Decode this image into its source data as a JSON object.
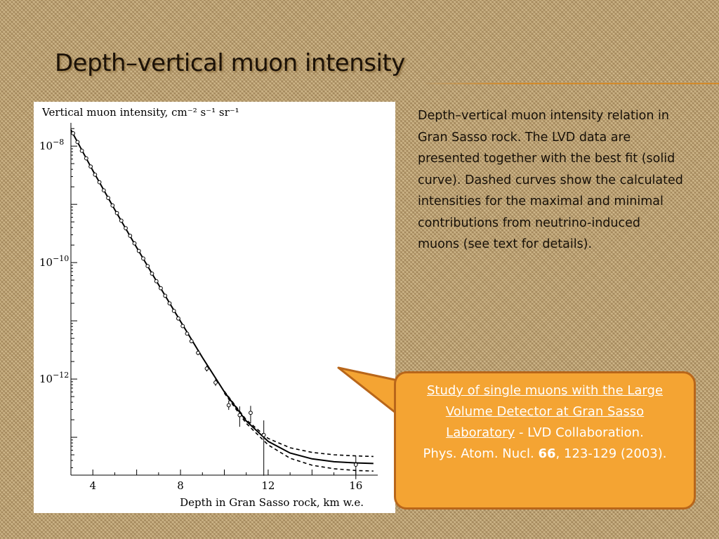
{
  "slide": {
    "title": "Depth–vertical muon intensity",
    "caption": "Depth–vertical muon intensity relation in Gran Sasso rock. The LVD data are presented together with the best fit (solid curve). Dashed curves show the calculated intensities for the maximal and minimal contributions from neutrino-induced muons (see text for details).",
    "reference": {
      "title": "Study of single muons with the Large Volume Detector at Gran Sasso Laboratory",
      "authors": " - LVD Collaboration.",
      "journal": "Phys. Atom. Nucl. ",
      "volume": "66",
      "pages_year": ", 123-129 (2003)."
    },
    "colors": {
      "accent": "#f4a433",
      "accent_border": "#b8661a",
      "title_rule": "#d38a2a"
    }
  },
  "chart_data": {
    "type": "scatter",
    "ylabel": "Vertical muon intensity, cm⁻² s⁻¹ sr⁻¹",
    "xlabel": "Depth in Gran Sasso rock, km w.e.",
    "x_ticks": [
      4,
      8,
      12,
      16
    ],
    "y_tick_labels": [
      {
        "exp": -8,
        "label": "10",
        "sup": "−8"
      },
      {
        "exp": -10,
        "label": "10",
        "sup": "−10"
      },
      {
        "exp": -12,
        "label": "10",
        "sup": "−12"
      }
    ],
    "xlim": [
      3,
      17
    ],
    "ylim_log10": [
      -13.65,
      -7.6
    ],
    "y_scale": "log",
    "series": [
      {
        "style": "points-with-errors",
        "x": [
          3.1,
          3.3,
          3.5,
          3.7,
          3.9,
          4.1,
          4.3,
          4.5,
          4.7,
          4.9,
          5.1,
          5.3,
          5.5,
          5.7,
          5.9,
          6.1,
          6.3,
          6.5,
          6.7,
          6.9,
          7.1,
          7.3,
          7.5,
          7.7,
          7.9,
          8.1,
          8.3,
          8.5,
          8.8,
          9.2,
          9.6,
          10.2,
          10.7,
          11.2,
          11.8,
          16.0
        ],
        "y_log10": [
          -7.78,
          -7.93,
          -8.08,
          -8.21,
          -8.35,
          -8.49,
          -8.62,
          -8.76,
          -8.89,
          -9.02,
          -9.15,
          -9.28,
          -9.41,
          -9.54,
          -9.67,
          -9.8,
          -9.93,
          -10.06,
          -10.19,
          -10.32,
          -10.44,
          -10.57,
          -10.7,
          -10.83,
          -10.96,
          -11.09,
          -11.22,
          -11.35,
          -11.55,
          -11.82,
          -12.06,
          -12.45,
          -12.62,
          -12.58,
          -12.96,
          -13.47
        ],
        "err_lo": [
          0.02,
          0.02,
          0.02,
          0.02,
          0.02,
          0.02,
          0.02,
          0.02,
          0.02,
          0.02,
          0.02,
          0.02,
          0.02,
          0.02,
          0.02,
          0.02,
          0.02,
          0.02,
          0.02,
          0.02,
          0.02,
          0.02,
          0.02,
          0.02,
          0.02,
          0.02,
          0.03,
          0.03,
          0.04,
          0.05,
          0.06,
          0.08,
          0.2,
          0.18,
          0.7,
          0.25
        ],
        "err_hi": [
          0.02,
          0.02,
          0.02,
          0.02,
          0.02,
          0.02,
          0.02,
          0.02,
          0.02,
          0.02,
          0.02,
          0.02,
          0.02,
          0.02,
          0.02,
          0.02,
          0.02,
          0.02,
          0.02,
          0.02,
          0.02,
          0.02,
          0.02,
          0.02,
          0.02,
          0.02,
          0.03,
          0.03,
          0.04,
          0.05,
          0.06,
          0.08,
          0.15,
          0.12,
          0.25,
          0.15
        ]
      },
      {
        "style": "solid",
        "x": [
          3.0,
          4.0,
          5.0,
          6.0,
          7.0,
          8.0,
          9.0,
          10.0,
          11.0,
          12.0,
          13.0,
          14.0,
          15.0,
          16.0,
          16.8
        ],
        "y_log10": [
          -7.72,
          -8.42,
          -9.09,
          -9.74,
          -10.38,
          -11.01,
          -11.63,
          -12.22,
          -12.72,
          -13.07,
          -13.27,
          -13.37,
          -13.42,
          -13.44,
          -13.45
        ]
      },
      {
        "style": "dashed",
        "x": [
          10.0,
          11.0,
          12.0,
          13.0,
          14.0,
          15.0,
          16.0,
          16.8
        ],
        "y_log10": [
          -12.21,
          -12.7,
          -13.02,
          -13.18,
          -13.26,
          -13.3,
          -13.32,
          -13.33
        ]
      },
      {
        "style": "dashed",
        "x": [
          10.0,
          11.0,
          12.0,
          13.0,
          14.0,
          15.0,
          16.0,
          16.8
        ],
        "y_log10": [
          -12.24,
          -12.76,
          -13.13,
          -13.36,
          -13.48,
          -13.54,
          -13.57,
          -13.58
        ]
      }
    ],
    "grid": false
  }
}
